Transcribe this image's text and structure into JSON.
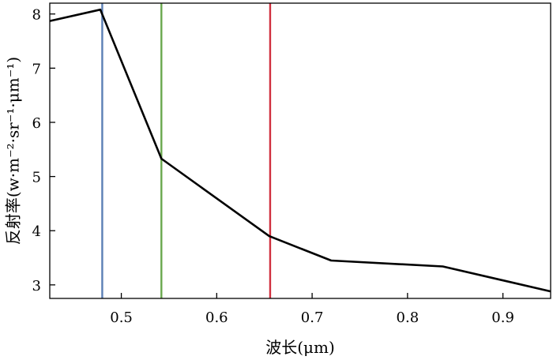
{
  "chart_data": {
    "type": "line",
    "title": "",
    "xlabel": "波长(μm)",
    "ylabel": "反射率(w·m⁻²·sr⁻¹·μm⁻¹)",
    "xlim": [
      0.425,
      0.95
    ],
    "ylim": [
      2.75,
      8.2
    ],
    "xticks": [
      0.5,
      0.6,
      0.7,
      0.8,
      0.9
    ],
    "xtick_labels": [
      "0.5",
      "0.6",
      "0.7",
      "0.8",
      "0.9"
    ],
    "yticks": [
      3,
      4,
      5,
      6,
      7,
      8
    ],
    "ytick_labels": [
      "3",
      "4",
      "5",
      "6",
      "7",
      "8"
    ],
    "grid": false,
    "series": [
      {
        "color": "#000000",
        "x": [
          0.425,
          0.478,
          0.542,
          0.655,
          0.72,
          0.837,
          0.95
        ],
        "y": [
          7.87,
          8.08,
          5.33,
          3.9,
          3.45,
          3.34,
          2.88
        ]
      }
    ],
    "vlines": [
      {
        "x": 0.48,
        "color": "#5b7fb5"
      },
      {
        "x": 0.542,
        "color": "#6aa84f"
      },
      {
        "x": 0.656,
        "color": "#d0303f"
      }
    ]
  }
}
